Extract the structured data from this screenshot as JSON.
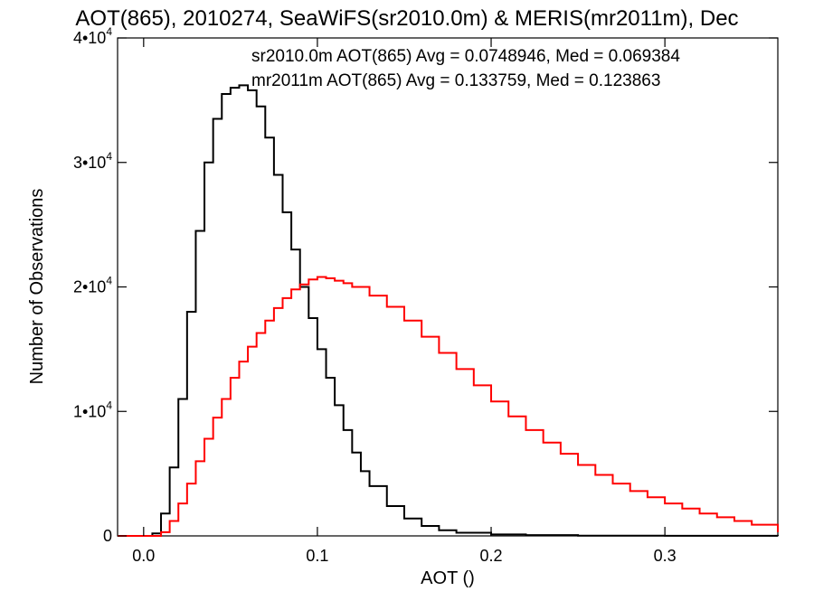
{
  "chart_data": {
    "type": "line",
    "title": "AOT(865), 2010274, SeaWiFS(sr2010.0m) & MERIS(mr2011m), Dec",
    "xlabel": "AOT ()",
    "ylabel": "Number of Observations",
    "xlim": [
      -0.015,
      0.365
    ],
    "ylim": [
      0,
      40000
    ],
    "x_ticks": [
      0.0,
      0.1,
      0.2,
      0.3
    ],
    "x_tick_labels": [
      "0.0",
      "0.1",
      "0.2",
      "0.3"
    ],
    "y_ticks": [
      0,
      10000,
      20000,
      30000,
      40000
    ],
    "y_tick_labels": [
      {
        "base": "0",
        "exp": ""
      },
      {
        "base": "1•10",
        "exp": "4"
      },
      {
        "base": "2•10",
        "exp": "4"
      },
      {
        "base": "3•10",
        "exp": "4"
      },
      {
        "base": "4•10",
        "exp": "4"
      }
    ],
    "grid": false,
    "step": true,
    "annotations": [
      {
        "text": "sr2010.0m AOT(865) Avg = 0.0748946, Med = 0.069384",
        "color": "#000000"
      },
      {
        "text": "mr2011m AOT(865) Avg = 0.133759, Med = 0.123863",
        "color": "#ff0000"
      }
    ],
    "series": [
      {
        "color": "#000000",
        "x": [
          -0.015,
          0.0,
          0.005,
          0.01,
          0.015,
          0.02,
          0.025,
          0.03,
          0.035,
          0.04,
          0.045,
          0.05,
          0.055,
          0.06,
          0.065,
          0.07,
          0.075,
          0.08,
          0.085,
          0.09,
          0.095,
          0.1,
          0.105,
          0.11,
          0.115,
          0.12,
          0.125,
          0.13,
          0.14,
          0.15,
          0.16,
          0.17,
          0.18,
          0.2,
          0.22,
          0.25,
          0.3,
          0.365
        ],
        "y": [
          0,
          0,
          200,
          1800,
          5500,
          11000,
          18000,
          24500,
          30000,
          33500,
          35500,
          36000,
          36200,
          35800,
          34500,
          32000,
          29000,
          26000,
          23000,
          20000,
          17500,
          15000,
          12700,
          10500,
          8500,
          6700,
          5200,
          4000,
          2400,
          1400,
          800,
          450,
          250,
          120,
          60,
          20,
          5,
          0
        ]
      },
      {
        "color": "#ff0000",
        "x": [
          -0.015,
          0.0,
          0.01,
          0.015,
          0.02,
          0.025,
          0.03,
          0.035,
          0.04,
          0.045,
          0.05,
          0.055,
          0.06,
          0.065,
          0.07,
          0.075,
          0.08,
          0.085,
          0.09,
          0.095,
          0.1,
          0.105,
          0.11,
          0.115,
          0.12,
          0.13,
          0.14,
          0.15,
          0.16,
          0.17,
          0.18,
          0.19,
          0.2,
          0.21,
          0.22,
          0.23,
          0.24,
          0.25,
          0.26,
          0.27,
          0.28,
          0.29,
          0.3,
          0.31,
          0.32,
          0.33,
          0.34,
          0.35,
          0.365
        ],
        "y": [
          0,
          0,
          300,
          1200,
          2600,
          4200,
          6000,
          7800,
          9500,
          11000,
          12700,
          14000,
          15200,
          16300,
          17300,
          18300,
          19100,
          19800,
          20200,
          20600,
          20800,
          20700,
          20500,
          20300,
          20000,
          19300,
          18400,
          17300,
          16000,
          14700,
          13400,
          12100,
          10800,
          9600,
          8500,
          7500,
          6600,
          5700,
          4900,
          4200,
          3600,
          3100,
          2600,
          2200,
          1800,
          1500,
          1200,
          900,
          300
        ]
      }
    ]
  }
}
